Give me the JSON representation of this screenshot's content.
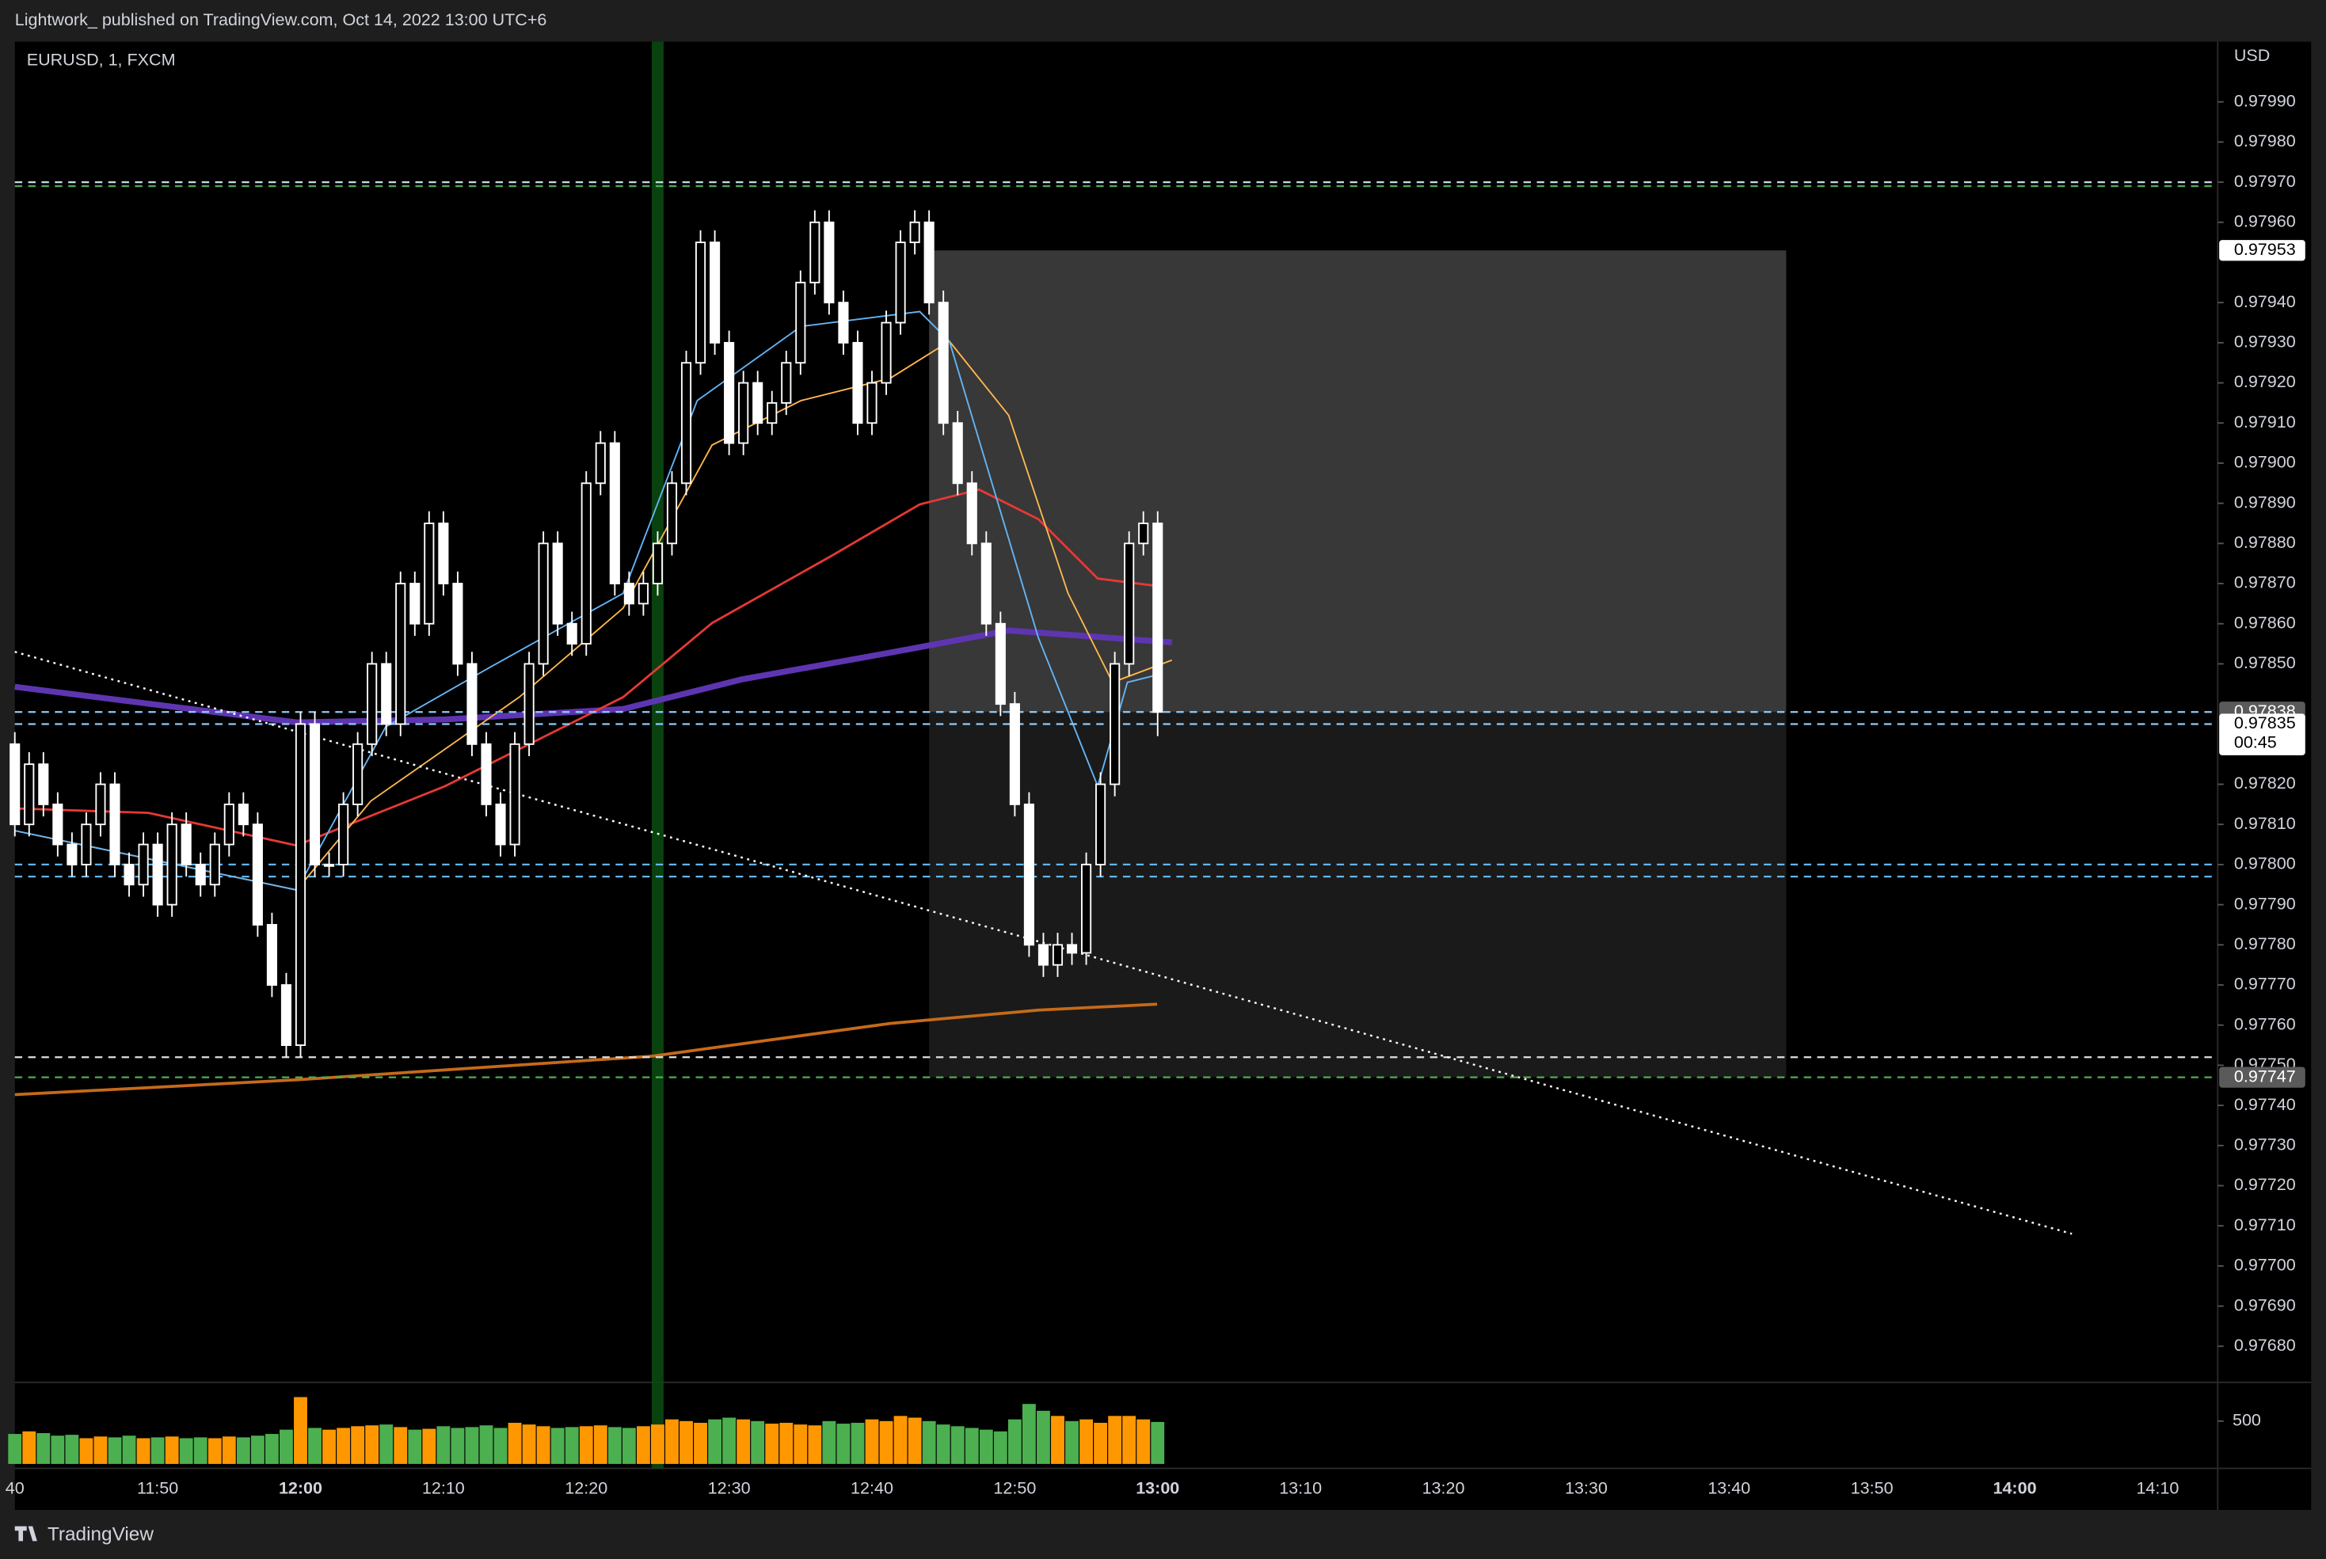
{
  "header": {
    "publisher": "Lightwork_ published on TradingView.com, Oct 14, 2022 13:00 UTC+6",
    "symbol": "EURUSD, 1, FXCM",
    "currency": "USD",
    "brand": "TradingView"
  },
  "chart_data": {
    "type": "candlestick",
    "categories": [
      "40",
      null,
      null,
      null,
      null,
      null,
      null,
      null,
      null,
      null,
      "11:50",
      null,
      null,
      null,
      null,
      null,
      null,
      null,
      null,
      null,
      "12:00",
      null,
      null,
      null,
      null,
      null,
      null,
      null,
      null,
      null,
      "12:10",
      null,
      null,
      null,
      null,
      null,
      null,
      null,
      null,
      null,
      "12:20",
      null,
      null,
      null,
      null,
      null,
      null,
      null,
      null,
      null,
      "12:30",
      null,
      null,
      null,
      null,
      null,
      null,
      null,
      null,
      null,
      "12:40",
      null,
      null,
      null,
      null,
      null,
      null,
      null,
      null,
      null,
      "12:50",
      null,
      null,
      null,
      null,
      null,
      null,
      null,
      null,
      null,
      "13:00",
      null,
      null,
      null,
      null,
      null,
      null,
      null,
      null,
      null,
      "13:10",
      null,
      null,
      null,
      null,
      null,
      null,
      null,
      null,
      null,
      "13:20",
      null,
      null,
      null,
      null,
      null,
      null,
      null,
      null,
      null,
      "13:30",
      null,
      null,
      null,
      null,
      null,
      null,
      null,
      null,
      null,
      "13:40",
      null,
      null,
      null,
      null,
      null,
      null,
      null,
      null,
      null,
      "13:50",
      null,
      null,
      null,
      null,
      null,
      null,
      null,
      null,
      null,
      "14:00",
      null,
      null,
      null,
      null,
      null,
      null,
      null,
      null,
      null,
      "14:10"
    ],
    "ohlc": [
      [
        0.9783,
        0.97833,
        0.97807,
        0.9781
      ],
      [
        0.9781,
        0.97828,
        0.97807,
        0.97825
      ],
      [
        0.97825,
        0.97828,
        0.97812,
        0.97815
      ],
      [
        0.97815,
        0.97818,
        0.97802,
        0.97805
      ],
      [
        0.97805,
        0.97808,
        0.97797,
        0.978
      ],
      [
        0.978,
        0.97813,
        0.97797,
        0.9781
      ],
      [
        0.9781,
        0.97823,
        0.97807,
        0.9782
      ],
      [
        0.9782,
        0.97823,
        0.97797,
        0.978
      ],
      [
        0.978,
        0.97803,
        0.97792,
        0.97795
      ],
      [
        0.97795,
        0.97808,
        0.97792,
        0.97805
      ],
      [
        0.97805,
        0.97808,
        0.97787,
        0.9779
      ],
      [
        0.9779,
        0.97813,
        0.97787,
        0.9781
      ],
      [
        0.9781,
        0.97813,
        0.97797,
        0.978
      ],
      [
        0.978,
        0.97803,
        0.97792,
        0.97795
      ],
      [
        0.97795,
        0.97808,
        0.97792,
        0.97805
      ],
      [
        0.97805,
        0.97818,
        0.97802,
        0.97815
      ],
      [
        0.97815,
        0.97818,
        0.97807,
        0.9781
      ],
      [
        0.9781,
        0.97813,
        0.97782,
        0.97785
      ],
      [
        0.97785,
        0.97788,
        0.97767,
        0.9777
      ],
      [
        0.9777,
        0.97773,
        0.97752,
        0.97755
      ],
      [
        0.97755,
        0.97838,
        0.97752,
        0.97835
      ],
      [
        0.97835,
        0.97838,
        0.97797,
        0.978
      ],
      [
        0.978,
        0.97803,
        0.97797,
        0.978
      ],
      [
        0.978,
        0.97818,
        0.97797,
        0.97815
      ],
      [
        0.97815,
        0.97833,
        0.97812,
        0.9783
      ],
      [
        0.9783,
        0.97853,
        0.97827,
        0.9785
      ],
      [
        0.9785,
        0.97853,
        0.97832,
        0.97835
      ],
      [
        0.97835,
        0.97873,
        0.97832,
        0.9787
      ],
      [
        0.9787,
        0.97873,
        0.97857,
        0.9786
      ],
      [
        0.9786,
        0.97888,
        0.97857,
        0.97885
      ],
      [
        0.97885,
        0.97888,
        0.97867,
        0.9787
      ],
      [
        0.9787,
        0.97873,
        0.97847,
        0.9785
      ],
      [
        0.9785,
        0.97853,
        0.97827,
        0.9783
      ],
      [
        0.9783,
        0.97833,
        0.97812,
        0.97815
      ],
      [
        0.97815,
        0.97818,
        0.97802,
        0.97805
      ],
      [
        0.97805,
        0.97833,
        0.97802,
        0.9783
      ],
      [
        0.9783,
        0.97853,
        0.97827,
        0.9785
      ],
      [
        0.9785,
        0.97883,
        0.97847,
        0.9788
      ],
      [
        0.9788,
        0.97883,
        0.97857,
        0.9786
      ],
      [
        0.9786,
        0.97863,
        0.97852,
        0.97855
      ],
      [
        0.97855,
        0.97898,
        0.97852,
        0.97895
      ],
      [
        0.97895,
        0.97908,
        0.97892,
        0.97905
      ],
      [
        0.97905,
        0.97908,
        0.97867,
        0.9787
      ],
      [
        0.9787,
        0.97873,
        0.97862,
        0.97865
      ],
      [
        0.97865,
        0.97873,
        0.97862,
        0.9787
      ],
      [
        0.9787,
        0.97883,
        0.97867,
        0.9788
      ],
      [
        0.9788,
        0.97898,
        0.97877,
        0.97895
      ],
      [
        0.97895,
        0.97928,
        0.97892,
        0.97925
      ],
      [
        0.97925,
        0.97958,
        0.97922,
        0.97955
      ],
      [
        0.97955,
        0.97958,
        0.97927,
        0.9793
      ],
      [
        0.9793,
        0.97933,
        0.97902,
        0.97905
      ],
      [
        0.97905,
        0.97923,
        0.97902,
        0.9792
      ],
      [
        0.9792,
        0.97923,
        0.97907,
        0.9791
      ],
      [
        0.9791,
        0.97918,
        0.97907,
        0.97915
      ],
      [
        0.97915,
        0.97928,
        0.97912,
        0.97925
      ],
      [
        0.97925,
        0.97948,
        0.97922,
        0.97945
      ],
      [
        0.97945,
        0.97963,
        0.97942,
        0.9796
      ],
      [
        0.9796,
        0.97963,
        0.97937,
        0.9794
      ],
      [
        0.9794,
        0.97943,
        0.97927,
        0.9793
      ],
      [
        0.9793,
        0.97933,
        0.97907,
        0.9791
      ],
      [
        0.9791,
        0.97923,
        0.97907,
        0.9792
      ],
      [
        0.9792,
        0.97938,
        0.97917,
        0.97935
      ],
      [
        0.97935,
        0.97958,
        0.97932,
        0.97955
      ],
      [
        0.97955,
        0.97963,
        0.97952,
        0.9796
      ],
      [
        0.9796,
        0.97963,
        0.97937,
        0.9794
      ],
      [
        0.9794,
        0.97943,
        0.97907,
        0.9791
      ],
      [
        0.9791,
        0.97913,
        0.97892,
        0.97895
      ],
      [
        0.97895,
        0.97898,
        0.97877,
        0.9788
      ],
      [
        0.9788,
        0.97883,
        0.97857,
        0.9786
      ],
      [
        0.9786,
        0.97863,
        0.97837,
        0.9784
      ],
      [
        0.9784,
        0.97843,
        0.97812,
        0.97815
      ],
      [
        0.97815,
        0.97818,
        0.97777,
        0.9778
      ],
      [
        0.9778,
        0.97783,
        0.97772,
        0.97775
      ],
      [
        0.97775,
        0.97783,
        0.97772,
        0.9778
      ],
      [
        0.9778,
        0.97783,
        0.97775,
        0.97778
      ],
      [
        0.97778,
        0.97803,
        0.97775,
        0.978
      ],
      [
        0.978,
        0.97823,
        0.97797,
        0.9782
      ],
      [
        0.9782,
        0.97853,
        0.97817,
        0.9785
      ],
      [
        0.9785,
        0.97883,
        0.97847,
        0.9788
      ],
      [
        0.9788,
        0.97888,
        0.97877,
        0.97885
      ],
      [
        0.97885,
        0.97888,
        0.97832,
        0.97838
      ],
      null,
      null,
      null,
      null,
      null,
      null,
      null,
      null,
      null,
      null,
      null,
      null,
      null,
      null,
      null,
      null,
      null,
      null,
      null,
      null,
      null,
      null,
      null,
      null,
      null,
      null,
      null,
      null,
      null,
      null,
      null,
      null,
      null,
      null,
      null,
      null,
      null,
      null,
      null,
      null,
      null,
      null,
      null,
      null,
      null,
      null,
      null,
      null,
      null,
      null,
      null,
      null,
      null,
      null,
      null,
      null,
      null,
      null,
      null,
      null,
      null,
      null,
      null,
      null,
      null,
      null,
      null,
      null,
      null,
      null
    ],
    "volume": [
      350,
      380,
      360,
      330,
      340,
      300,
      320,
      310,
      330,
      300,
      310,
      320,
      300,
      310,
      300,
      320,
      310,
      330,
      350,
      400,
      780,
      420,
      400,
      420,
      440,
      450,
      460,
      430,
      400,
      410,
      440,
      420,
      430,
      450,
      420,
      480,
      460,
      440,
      420,
      430,
      440,
      450,
      430,
      420,
      440,
      460,
      520,
      500,
      480,
      520,
      540,
      520,
      500,
      470,
      480,
      460,
      450,
      500,
      470,
      480,
      520,
      500,
      560,
      540,
      500,
      460,
      440,
      420,
      400,
      380,
      520,
      700,
      620,
      560,
      500,
      520,
      480,
      560,
      560,
      520,
      490,
      null,
      null,
      null,
      null,
      null,
      null,
      null,
      null,
      null,
      null,
      null,
      null,
      null,
      null,
      null,
      null,
      null,
      null,
      null,
      null,
      null,
      null,
      null,
      null,
      null,
      null,
      null,
      null,
      null,
      null,
      null,
      null,
      null,
      null,
      null,
      null,
      null,
      null,
      null,
      null,
      null,
      null,
      null,
      null,
      null,
      null,
      null,
      null,
      null,
      null,
      null,
      null,
      null,
      null,
      null,
      null,
      null,
      null,
      null,
      null,
      null,
      null,
      null,
      null,
      null,
      null,
      null,
      null,
      null,
      null
    ],
    "up_color": "#ffffff",
    "down_color": "#ffffff",
    "volume_up_color": "#ff9800",
    "volume_down_color": "#4caf50",
    "ylim": [
      0.97671,
      0.98005
    ],
    "yticks": [
      {
        "value": 0.9799,
        "label": "0.97990"
      },
      {
        "value": 0.9798,
        "label": "0.97980"
      },
      {
        "value": 0.9797,
        "label": "0.97970"
      },
      {
        "value": 0.9796,
        "label": "0.97960"
      },
      {
        "value": 0.9794,
        "label": "0.97940"
      },
      {
        "value": 0.9793,
        "label": "0.97930"
      },
      {
        "value": 0.9792,
        "label": "0.97920"
      },
      {
        "value": 0.9791,
        "label": "0.97910"
      },
      {
        "value": 0.979,
        "label": "0.97900"
      },
      {
        "value": 0.9789,
        "label": "0.97890"
      },
      {
        "value": 0.9788,
        "label": "0.97880"
      },
      {
        "value": 0.9787,
        "label": "0.97870"
      },
      {
        "value": 0.9786,
        "label": "0.97860"
      },
      {
        "value": 0.9785,
        "label": "0.97850"
      },
      {
        "value": 0.9782,
        "label": "0.97820"
      },
      {
        "value": 0.9781,
        "label": "0.97810"
      },
      {
        "value": 0.978,
        "label": "0.97800"
      },
      {
        "value": 0.9779,
        "label": "0.97790"
      },
      {
        "value": 0.9778,
        "label": "0.97780"
      },
      {
        "value": 0.9777,
        "label": "0.97770"
      },
      {
        "value": 0.9776,
        "label": "0.97760"
      },
      {
        "value": 0.9775,
        "label": "0.97750"
      },
      {
        "value": 0.9774,
        "label": "0.97740"
      },
      {
        "value": 0.9773,
        "label": "0.97730"
      },
      {
        "value": 0.9772,
        "label": "0.97720"
      },
      {
        "value": 0.9771,
        "label": "0.97710"
      },
      {
        "value": 0.977,
        "label": "0.97700"
      },
      {
        "value": 0.9769,
        "label": "0.97690"
      },
      {
        "value": 0.9768,
        "label": "0.97680"
      }
    ],
    "volume_ylim": [
      0,
      900
    ],
    "volume_yticks": [
      500
    ],
    "grid": false,
    "levels": [
      {
        "value": 0.9797,
        "color": "#cfd8e6"
      },
      {
        "value": 0.97969,
        "color": "#4caf50"
      },
      {
        "value": 0.97838,
        "color": "#90caf9"
      },
      {
        "value": 0.97835,
        "color": "#90caf9"
      },
      {
        "value": 0.978,
        "color": "#64b5f6"
      },
      {
        "value": 0.97797,
        "color": "#64b5f6"
      },
      {
        "value": 0.97752,
        "color": "#e0e0e0"
      },
      {
        "value": 0.97747,
        "color": "#4caf50"
      }
    ],
    "badges": [
      {
        "value": 0.97953,
        "color": "#ffffff",
        "text_color": "#000000"
      },
      {
        "value": 0.97838,
        "color": "#5a5a5a",
        "text_color": "#ffffff"
      },
      {
        "value": 0.97835,
        "color": "#ffffff",
        "text_color": "#000000",
        "countdown": "00:45"
      },
      {
        "value": 0.97747,
        "color": "#5a5a5a",
        "text_color": "#ffffff"
      }
    ],
    "position": {
      "start": 64,
      "end": 124,
      "target": 0.97953,
      "entry": 0.97838,
      "stop": 0.97747
    },
    "trendline": {
      "from": [
        0,
        0.97853
      ],
      "to": [
        144,
        0.97708
      ]
    },
    "highlight_bar": 45
  }
}
